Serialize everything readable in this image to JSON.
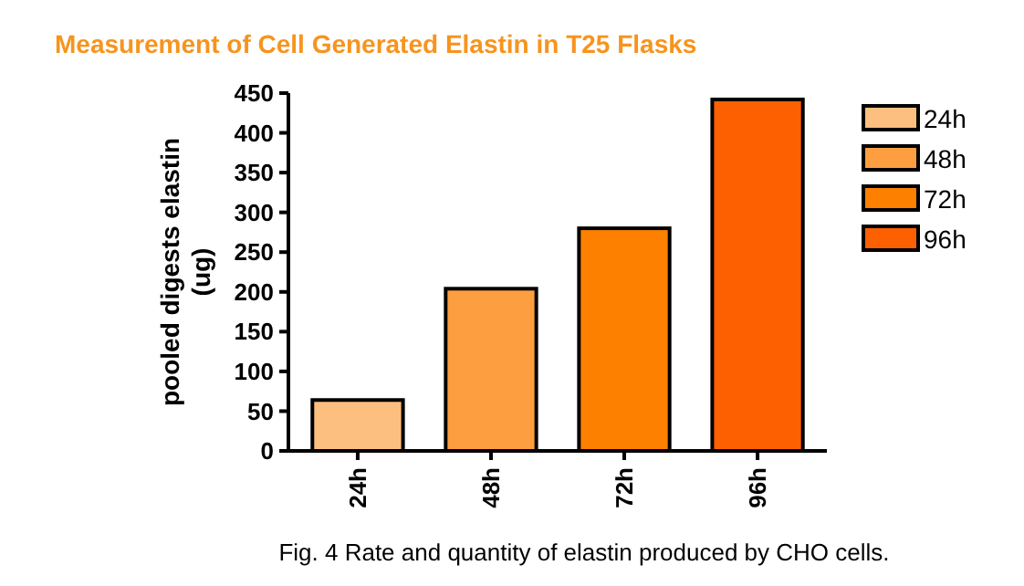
{
  "chart_data": {
    "type": "bar",
    "title": "Measurement of Cell Generated Elastin in T25 Flasks",
    "ylabel": "pooled digests elastin (ug)",
    "categories": [
      "24h",
      "48h",
      "72h",
      "96h"
    ],
    "stacked": true,
    "series": [
      {
        "name": "24h",
        "color": "#fdbf80",
        "values": [
          64,
          null,
          null,
          null
        ]
      },
      {
        "name": "48h",
        "color": "#fd9e40",
        "values": [
          null,
          204,
          null,
          null
        ]
      },
      {
        "name": "72h",
        "color": "#fd8000",
        "values": [
          null,
          null,
          280,
          null
        ]
      },
      {
        "name": "96h",
        "color": "#fd6000",
        "values": [
          null,
          null,
          null,
          442
        ]
      }
    ],
    "ylim": [
      0,
      450
    ],
    "yticks": [
      0,
      50,
      100,
      150,
      200,
      250,
      300,
      350,
      400,
      450
    ],
    "legend": "right",
    "annotations": [
      "Fig. 4  Rate and quantity of elastin produced by CHO cells."
    ]
  }
}
